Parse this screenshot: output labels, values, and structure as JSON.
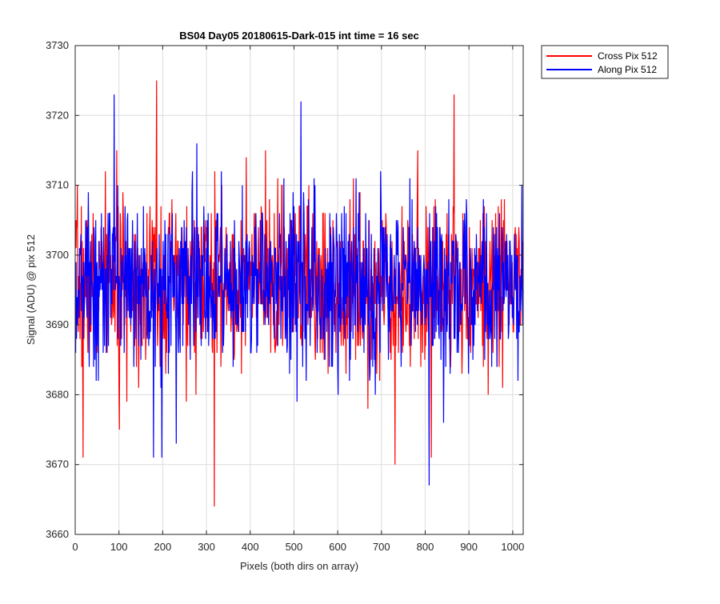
{
  "chart_data": {
    "type": "line",
    "title": "BS04 Day05 20180615-Dark-015 int time = 16 sec",
    "xlabel": "Pixels (both dirs on array)",
    "ylabel": "Signal (ADU) @ pix 512",
    "xlim": [
      0,
      1024
    ],
    "ylim": [
      3660,
      3730
    ],
    "xticks": [
      0,
      100,
      200,
      300,
      400,
      500,
      600,
      700,
      800,
      900,
      1000
    ],
    "yticks": [
      3660,
      3670,
      3680,
      3690,
      3700,
      3710,
      3720,
      3730
    ],
    "grid": true,
    "legend_position": "outside-top-right",
    "series": [
      {
        "name": "Cross Pix 512",
        "color": "#ff0000",
        "mean": 3696,
        "noise_std": 6,
        "seed": 7,
        "num_points": 1024,
        "features": [
          {
            "x": 185,
            "y": 3725
          },
          {
            "x": 317,
            "y": 3664
          },
          {
            "x": 17,
            "y": 3671
          },
          {
            "x": 730,
            "y": 3670
          },
          {
            "x": 865,
            "y": 3723
          },
          {
            "x": 813,
            "y": 3671
          },
          {
            "x": 100,
            "y": 3675
          }
        ]
      },
      {
        "name": "Along Pix 512",
        "color": "#0000ff",
        "mean": 3696,
        "noise_std": 6,
        "seed": 13,
        "num_points": 1024,
        "features": [
          {
            "x": 88,
            "y": 3723
          },
          {
            "x": 515,
            "y": 3722
          },
          {
            "x": 808,
            "y": 3667
          },
          {
            "x": 178,
            "y": 3671
          },
          {
            "x": 197,
            "y": 3671
          },
          {
            "x": 230,
            "y": 3673
          },
          {
            "x": 1020,
            "y": 3710
          }
        ]
      }
    ]
  }
}
